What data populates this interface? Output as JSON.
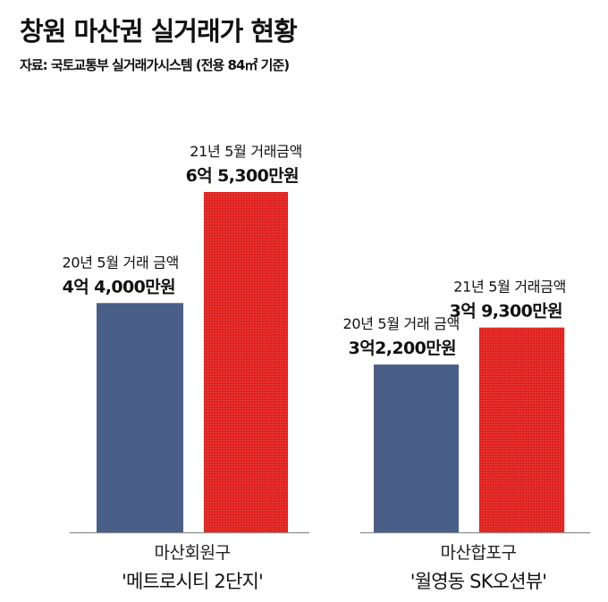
{
  "header": {
    "title": "창원 마산권 실거래가 현황",
    "source": "자료: 국토교통부 실거래가시스템 (전용 84㎡ 기준)"
  },
  "chart_data": {
    "type": "bar",
    "title": "창원 마산권 실거래가 현황",
    "unit": "만원",
    "colors": {
      "2020-05": "#4a5f87",
      "2021-05": "#e1231f"
    },
    "groups": [
      {
        "district": "마산회원구",
        "complex": "'메트로시티 2단지'",
        "bars": [
          {
            "period": "20년 5월 거래 금액",
            "value": 44000,
            "value_label": "4억 4,000만원"
          },
          {
            "period": "21년 5월 거래금액",
            "value": 65300,
            "value_label": "6억 5,300만원"
          }
        ]
      },
      {
        "district": "마산합포구",
        "complex": "'월영동 SK오션뷰'",
        "bars": [
          {
            "period": "20년 5월 거래 금액",
            "value": 32200,
            "value_label": "3억2,200만원"
          },
          {
            "period": "21년 5월 거래금액",
            "value": 39300,
            "value_label": "3억 9,300만원"
          }
        ]
      }
    ]
  }
}
